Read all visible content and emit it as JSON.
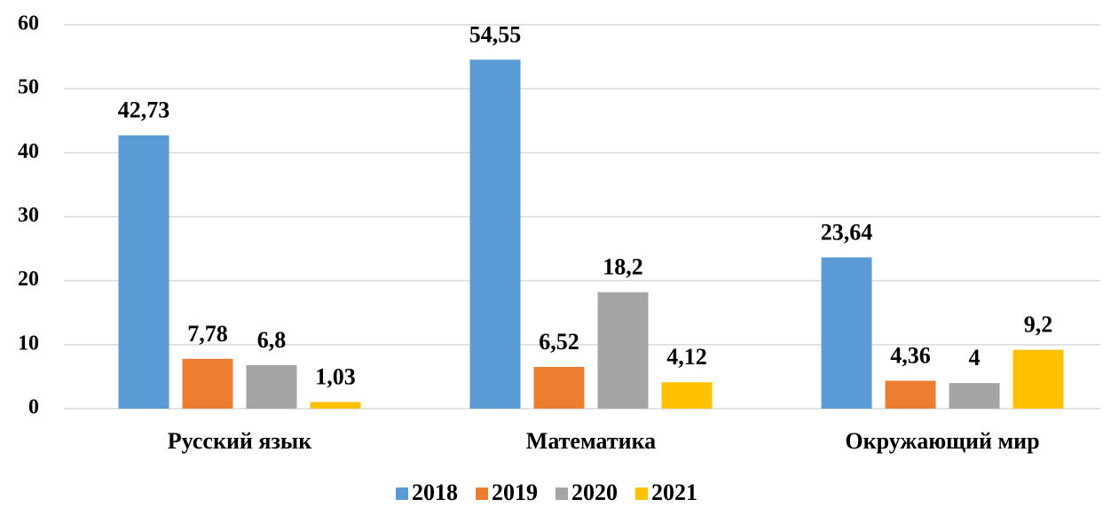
{
  "chart_data": {
    "type": "bar",
    "categories": [
      "Русский язык",
      "Математика",
      "Окружающий мир"
    ],
    "series": [
      {
        "name": "2018",
        "color": "#5b9bd5",
        "values": [
          42.73,
          54.55,
          23.64
        ],
        "value_labels": [
          "42,73",
          "54,55",
          "23,64"
        ]
      },
      {
        "name": "2019",
        "color": "#ed7d31",
        "values": [
          7.78,
          6.52,
          4.36
        ],
        "value_labels": [
          "7,78",
          "6,52",
          "4,36"
        ]
      },
      {
        "name": "2020",
        "color": "#a5a5a5",
        "values": [
          6.8,
          18.2,
          4
        ],
        "value_labels": [
          "6,8",
          "18,2",
          "4"
        ]
      },
      {
        "name": "2021",
        "color": "#ffc000",
        "values": [
          1.03,
          4.12,
          9.2
        ],
        "value_labels": [
          "1,03",
          "4,12",
          "9,2"
        ]
      }
    ],
    "ylim": [
      0,
      60
    ],
    "yticks": [
      0,
      10,
      20,
      30,
      40,
      50,
      60
    ],
    "grid": true,
    "legend": "bottom"
  }
}
